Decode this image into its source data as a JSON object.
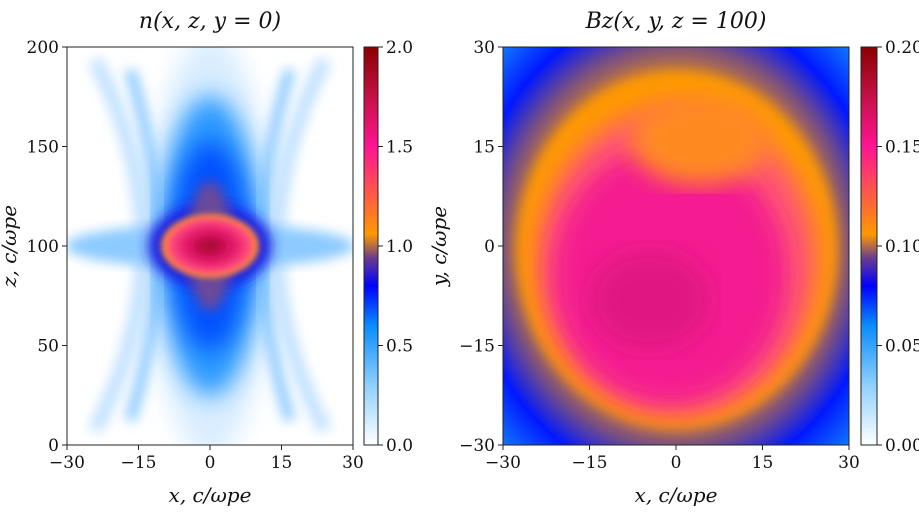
{
  "colormap": {
    "stops": [
      {
        "v": 0.0,
        "color": "#ffffff"
      },
      {
        "v": 0.15,
        "color": "#8fd0ff"
      },
      {
        "v": 0.3,
        "color": "#0a8cff"
      },
      {
        "v": 0.4,
        "color": "#0000ff"
      },
      {
        "v": 0.47,
        "color": "#6a3c8c"
      },
      {
        "v": 0.53,
        "color": "#ff9900"
      },
      {
        "v": 0.62,
        "color": "#ff6040"
      },
      {
        "v": 0.75,
        "color": "#ff1493"
      },
      {
        "v": 0.87,
        "color": "#c8104a"
      },
      {
        "v": 1.0,
        "color": "#8b0000"
      }
    ]
  },
  "chart_data": [
    {
      "type": "heatmap",
      "title": "n(x, z, y = 0)",
      "xlabel": "x,  c/ωpe",
      "ylabel": "z,  c/ωpe",
      "xlim": [
        -30,
        30
      ],
      "ylim": [
        0,
        200
      ],
      "xticks": [
        "−30",
        "−15",
        "0",
        "15",
        "30"
      ],
      "xtick_values": [
        -30,
        -15,
        0,
        15,
        30
      ],
      "yticks": [
        "0",
        "50",
        "100",
        "150",
        "200"
      ],
      "ytick_values": [
        0,
        50,
        100,
        150,
        200
      ],
      "colorbar": {
        "range": [
          0,
          2.0
        ],
        "ticks": [
          "0.0",
          "0.5",
          "1.0",
          "1.5",
          "2.0"
        ],
        "tick_values": [
          0,
          0.5,
          1.0,
          1.5,
          2.0
        ]
      }
    },
    {
      "type": "heatmap",
      "title": "Bz(x, y, z = 100)",
      "xlabel": "x,  c/ωpe",
      "ylabel": "y,  c/ωpe",
      "xlim": [
        -30,
        30
      ],
      "ylim": [
        -30,
        30
      ],
      "xticks": [
        "−30",
        "−15",
        "0",
        "15",
        "30"
      ],
      "xtick_values": [
        -30,
        -15,
        0,
        15,
        30
      ],
      "yticks": [
        "−30",
        "−15",
        "0",
        "15",
        "30"
      ],
      "ytick_values": [
        -30,
        -15,
        0,
        15,
        30
      ],
      "colorbar": {
        "range": [
          0,
          0.2
        ],
        "ticks": [
          "0.00",
          "0.05",
          "0.10",
          "0.15",
          "0.20"
        ],
        "tick_values": [
          0,
          0.05,
          0.1,
          0.15,
          0.2
        ]
      }
    }
  ]
}
